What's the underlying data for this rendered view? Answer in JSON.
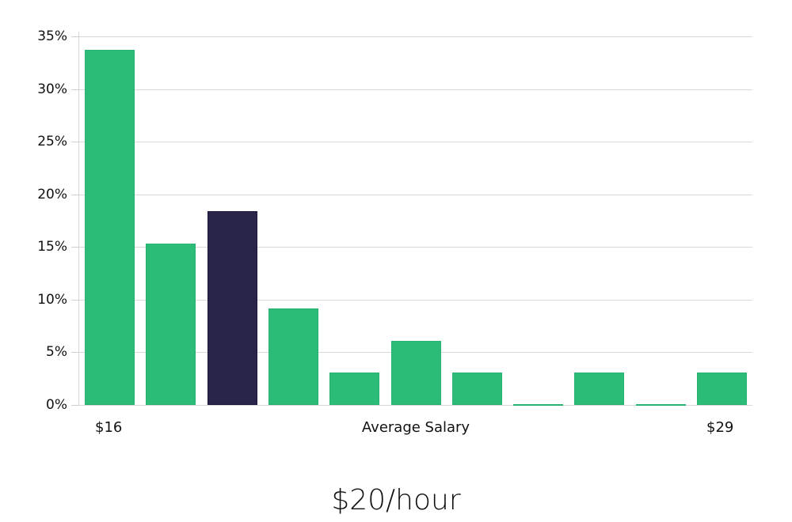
{
  "chart_data": {
    "type": "bar",
    "title": "",
    "xlabel": "Average Salary",
    "ylabel": "",
    "categories": [
      "$16",
      "",
      "",
      "",
      "",
      "",
      "",
      "",
      "",
      "",
      "$29"
    ],
    "x_tick_labels": {
      "first": "$16",
      "last": "$29"
    },
    "values": [
      33.7,
      15.3,
      18.4,
      9.2,
      3.1,
      6.1,
      3.1,
      0,
      3.1,
      0,
      3.1
    ],
    "highlight_index": 2,
    "colors": {
      "default": "#2bbd77",
      "highlight": "#28244a",
      "grid": "#d9d9d9"
    },
    "y_ticks": [
      "0%",
      "5%",
      "10%",
      "15%",
      "20%",
      "25%",
      "30%",
      "35%"
    ],
    "ylim": [
      0,
      35
    ],
    "grid": true,
    "legend": null
  },
  "summary": {
    "value": "$20/hour"
  }
}
